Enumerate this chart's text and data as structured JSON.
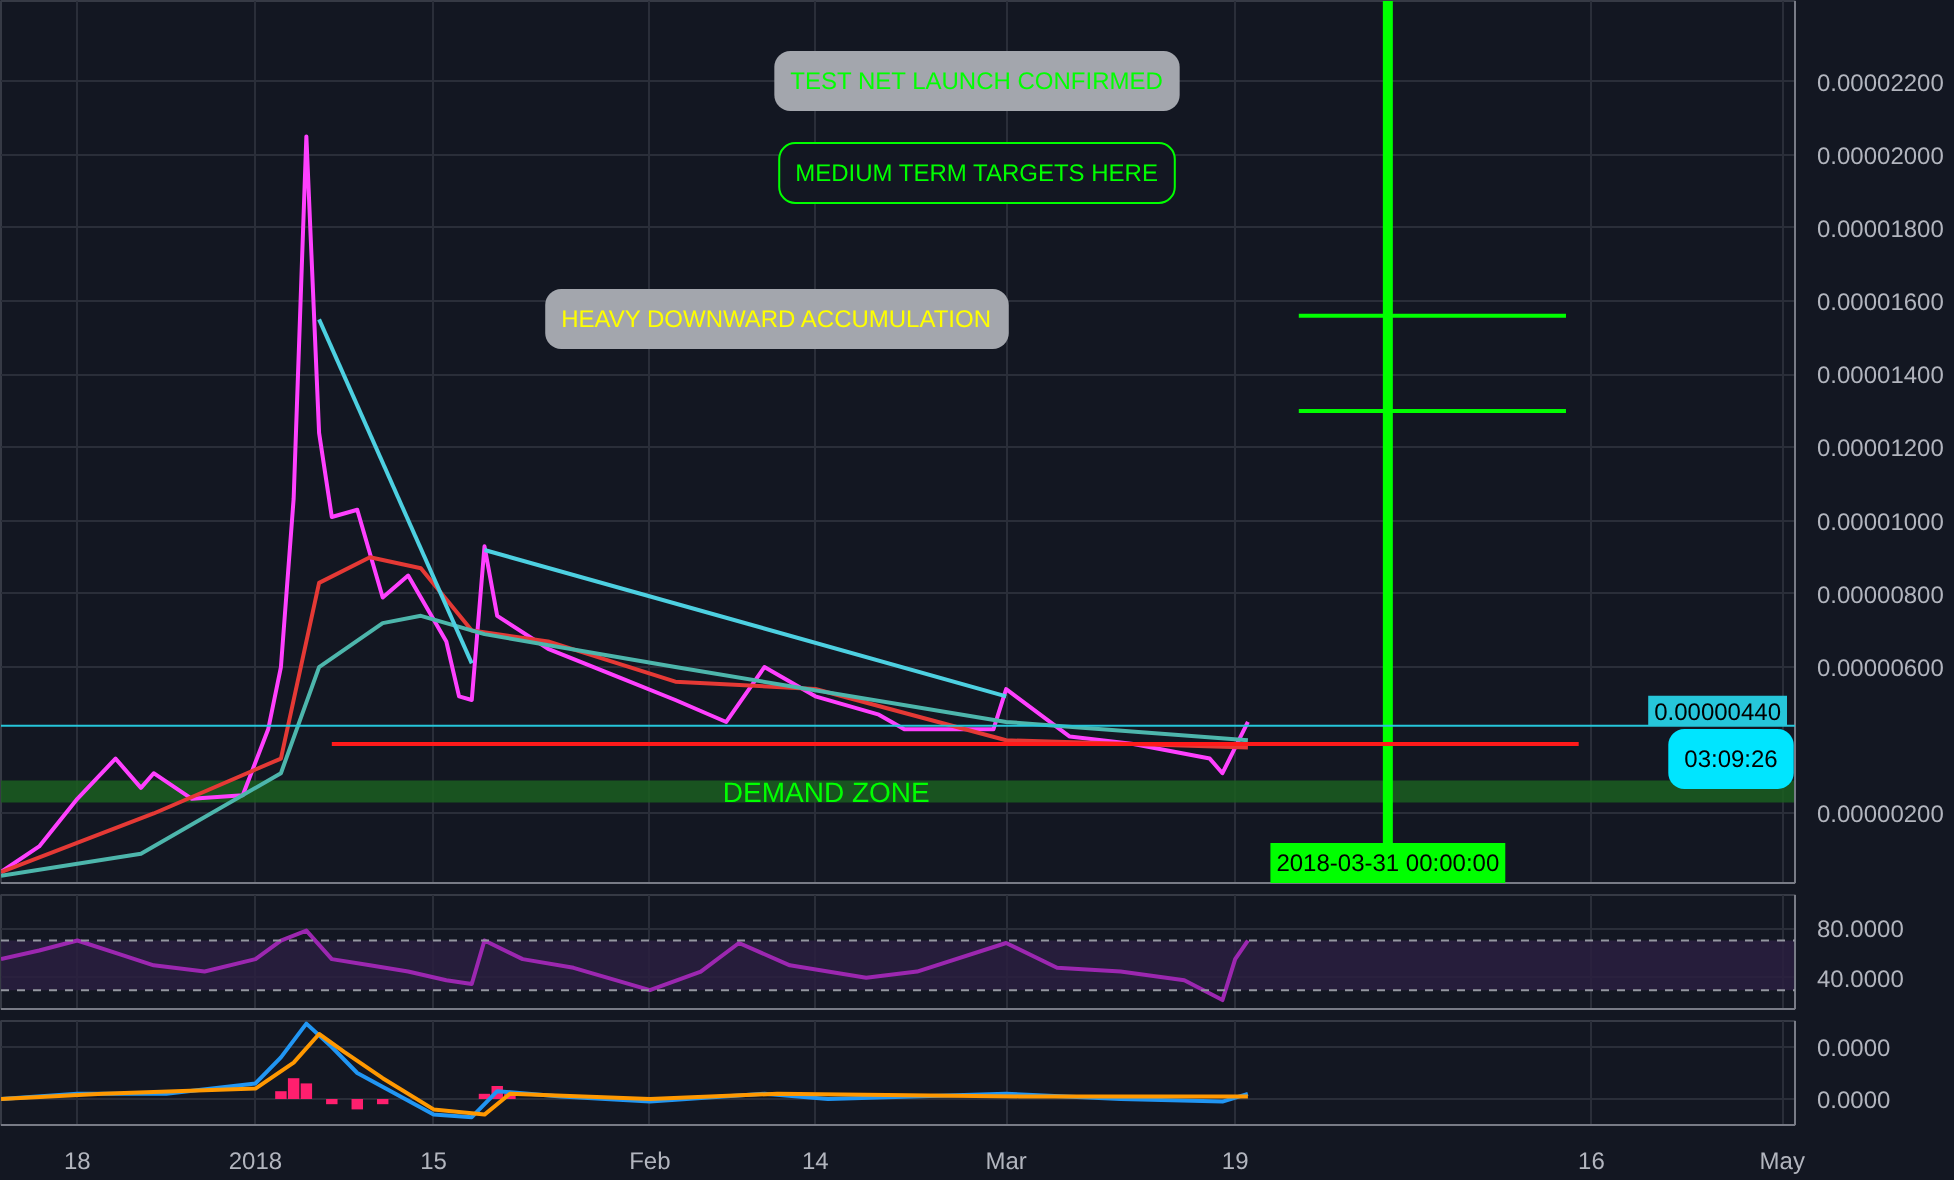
{
  "chart_data": [
    {
      "type": "line",
      "xlim": [
        "2017-12-12",
        "2018-05-02"
      ],
      "ylim": [
        1e-07,
        2.42e-05
      ],
      "tick_labels": "y",
      "grid": true,
      "yticks": [
        {
          "value": 2e-06,
          "label": "0.00000200"
        },
        {
          "value": 6e-06,
          "label": "0.00000600"
        },
        {
          "value": 8e-06,
          "label": "0.00000800"
        },
        {
          "value": 1e-05,
          "label": "0.00001000"
        },
        {
          "value": 1.2e-05,
          "label": "0.00001200"
        },
        {
          "value": 1.4e-05,
          "label": "0.00001400"
        },
        {
          "value": 1.6e-05,
          "label": "0.00001600"
        },
        {
          "value": 1.8e-05,
          "label": "0.00001800"
        },
        {
          "value": 2e-05,
          "label": "0.00002000"
        },
        {
          "value": 2.2e-05,
          "label": "0.00002200"
        }
      ],
      "series": [
        {
          "color": "#ff40ff",
          "x": [
            "2017-12-12",
            "2017-12-15",
            "2017-12-18",
            "2017-12-21",
            "2017-12-23",
            "2017-12-24",
            "2017-12-27",
            "2017-12-31",
            "2018-01-02",
            "2018-01-03",
            "2018-01-04",
            "2018-01-05",
            "2018-01-06",
            "2018-01-07",
            "2018-01-09",
            "2018-01-11",
            "2018-01-13",
            "2018-01-14",
            "2018-01-16",
            "2018-01-17",
            "2018-01-18",
            "2018-01-19",
            "2018-01-20",
            "2018-01-24",
            "2018-01-29",
            "2018-02-03",
            "2018-02-07",
            "2018-02-10",
            "2018-02-14",
            "2018-02-19",
            "2018-02-21",
            "2018-02-28",
            "2018-03-01",
            "2018-03-06",
            "2018-03-11",
            "2018-03-17",
            "2018-03-18",
            "2018-03-20"
          ],
          "values": [
            4e-07,
            1.1e-06,
            2.4e-06,
            3.5e-06,
            2.7e-06,
            3.1e-06,
            2.4e-06,
            2.5e-06,
            4.3e-06,
            6e-06,
            1.06e-05,
            2.05e-05,
            1.24e-05,
            1.01e-05,
            1.03e-05,
            7.9e-06,
            8.5e-06,
            7.9e-06,
            6.7e-06,
            5.2e-06,
            5.1e-06,
            9.3e-06,
            7.4e-06,
            6.5e-06,
            5.8e-06,
            5.1e-06,
            4.5e-06,
            6e-06,
            5.2e-06,
            4.7e-06,
            4.3e-06,
            4.3e-06,
            5.4e-06,
            4.1e-06,
            3.9e-06,
            3.5e-06,
            3.1e-06,
            4.5e-06
          ]
        },
        {
          "color": "#e53935",
          "x": [
            "2017-12-12",
            "2017-12-24",
            "2018-01-03",
            "2018-01-06",
            "2018-01-10",
            "2018-01-14",
            "2018-01-18",
            "2018-01-24",
            "2018-02-03",
            "2018-02-14",
            "2018-03-01",
            "2018-03-20"
          ],
          "values": [
            4e-07,
            2e-06,
            3.5e-06,
            8.3e-06,
            9e-06,
            8.7e-06,
            7e-06,
            6.7e-06,
            5.6e-06,
            5.4e-06,
            4e-06,
            3.8e-06
          ]
        },
        {
          "color": "#4db6ac",
          "x": [
            "2017-12-12",
            "2017-12-23",
            "2018-01-03",
            "2018-01-06",
            "2018-01-11",
            "2018-01-14",
            "2018-01-19",
            "2018-02-03",
            "2018-03-01",
            "2018-03-20"
          ],
          "values": [
            3e-07,
            9e-07,
            3.1e-06,
            6e-06,
            7.2e-06,
            7.4e-06,
            6.9e-06,
            6e-06,
            4.5e-06,
            4e-06
          ]
        },
        {
          "color": "#4dd0e1",
          "x": [
            "2018-01-06",
            "2018-01-18"
          ],
          "values": [
            1.55e-05,
            6.1e-06
          ]
        },
        {
          "color": "#4dd0e1",
          "x": [
            "2018-01-19",
            "2018-03-01"
          ],
          "values": [
            9.2e-06,
            5.2e-06
          ]
        },
        {
          "color": "#ff1a1a",
          "x": [
            "2018-01-07",
            "2018-04-15"
          ],
          "values": [
            3.9e-06,
            3.9e-06
          ]
        },
        {
          "color": "#00ff00",
          "x": [
            "2018-03-24",
            "2018-04-14"
          ],
          "values": [
            1.56e-05,
            1.56e-05
          ]
        },
        {
          "color": "#00ff00",
          "x": [
            "2018-03-24",
            "2018-04-14"
          ],
          "values": [
            1.3e-05,
            1.3e-05
          ]
        }
      ],
      "ref_lines": [
        {
          "axis": "x",
          "value": "2018-03-31",
          "label": "2018-03-31 00:00:00",
          "color": "#00ff00"
        },
        {
          "axis": "y",
          "value": 4.4e-06,
          "label": "0.00000440",
          "color": "#26c6da"
        }
      ],
      "bands": [
        {
          "axis": "y",
          "from": 2.3e-06,
          "to": 2.9e-06,
          "label": "DEMAND ZONE",
          "color": "#1b5e20"
        }
      ],
      "annotations": [
        "TEST NET LAUNCH CONFIRMED",
        "MEDIUM TERM TARGETS HERE",
        "HEAVY DOWNWARD ACCUMULATION",
        "03:09:26"
      ]
    },
    {
      "type": "line",
      "xlim": [
        "2017-12-12",
        "2018-05-02"
      ],
      "ylim": [
        14.8,
        106.7
      ],
      "tick_labels": "y",
      "grid": true,
      "yticks": [
        {
          "value": 40,
          "label": "40.0000"
        },
        {
          "value": 80,
          "label": "80.0000"
        }
      ],
      "series": [
        {
          "color": "#9c27b0",
          "x": [
            "2017-12-12",
            "2017-12-15",
            "2017-12-18",
            "2017-12-21",
            "2017-12-24",
            "2017-12-28",
            "2018-01-01",
            "2018-01-03",
            "2018-01-05",
            "2018-01-07",
            "2018-01-10",
            "2018-01-13",
            "2018-01-16",
            "2018-01-18",
            "2018-01-19",
            "2018-01-22",
            "2018-01-26",
            "2018-02-01",
            "2018-02-05",
            "2018-02-08",
            "2018-02-12",
            "2018-02-18",
            "2018-02-22",
            "2018-03-01",
            "2018-03-05",
            "2018-03-10",
            "2018-03-15",
            "2018-03-18",
            "2018-03-19",
            "2018-03-20"
          ],
          "values": [
            55,
            62,
            70,
            60,
            50,
            45,
            55,
            70,
            78,
            55,
            50,
            45,
            38,
            35,
            70,
            55,
            48,
            30,
            45,
            68,
            50,
            40,
            45,
            68,
            48,
            45,
            38,
            22,
            55,
            70
          ]
        }
      ],
      "ref_lines": [
        {
          "axis": "y",
          "value": 70,
          "color": "#9598a1",
          "line_style": "dashed"
        },
        {
          "axis": "y",
          "value": 30,
          "color": "#9598a1",
          "line_style": "dashed"
        }
      ],
      "bands": [
        {
          "axis": "y",
          "from": 30,
          "to": 70,
          "color": "#2a1e3f"
        }
      ]
    },
    {
      "type": "line",
      "xlim": [
        "2017-12-12",
        "2018-05-02"
      ],
      "ylim": [
        -5e-07,
        1.5e-06
      ],
      "grid": true,
      "xticks": [
        {
          "value": "2017-12-18",
          "label": "18"
        },
        {
          "value": "2018-01-01",
          "label": "2018"
        },
        {
          "value": "2018-01-15",
          "label": "15"
        },
        {
          "value": "2018-02-01",
          "label": "Feb"
        },
        {
          "value": "2018-02-14",
          "label": "14"
        },
        {
          "value": "2018-03-01",
          "label": "Mar"
        },
        {
          "value": "2018-03-19",
          "label": "19"
        },
        {
          "value": "2018-04-16",
          "label": "16"
        },
        {
          "value": "2018-05-01",
          "label": "May"
        }
      ],
      "yticks": [
        {
          "value": 0,
          "label": "0.0000"
        },
        {
          "value": 1e-06,
          "label": "0.0000"
        }
      ],
      "series": [
        {
          "type": "bar",
          "color": "#ff1f6e",
          "x": [
            "2018-01-03",
            "2018-01-04",
            "2018-01-05",
            "2018-01-07",
            "2018-01-09",
            "2018-01-11",
            "2018-01-19",
            "2018-01-20",
            "2018-01-21"
          ],
          "values": [
            1.5e-07,
            4e-07,
            3e-07,
            -1e-07,
            -2e-07,
            -1e-07,
            1e-07,
            2.5e-07,
            1e-07
          ]
        },
        {
          "color": "#2196f3",
          "x": [
            "2017-12-12",
            "2017-12-18",
            "2017-12-25",
            "2018-01-01",
            "2018-01-03",
            "2018-01-05",
            "2018-01-07",
            "2018-01-09",
            "2018-01-12",
            "2018-01-15",
            "2018-01-18",
            "2018-01-20",
            "2018-01-25",
            "2018-02-01",
            "2018-02-10",
            "2018-02-15",
            "2018-03-01",
            "2018-03-10",
            "2018-03-18",
            "2018-03-20"
          ],
          "values": [
            0,
            1e-07,
            1e-07,
            3e-07,
            8e-07,
            1.45e-06,
            1e-06,
            5e-07,
            1e-07,
            -3e-07,
            -3.5e-07,
            1.5e-07,
            5e-08,
            -5e-08,
            1e-07,
            0,
            1e-07,
            0,
            -5e-08,
            1e-07
          ]
        },
        {
          "color": "#ff9800",
          "x": [
            "2017-12-12",
            "2017-12-20",
            "2018-01-01",
            "2018-01-04",
            "2018-01-06",
            "2018-01-08",
            "2018-01-11",
            "2018-01-15",
            "2018-01-19",
            "2018-01-21",
            "2018-02-01",
            "2018-02-11",
            "2018-03-02",
            "2018-03-20"
          ],
          "values": [
            0,
            1e-07,
            2e-07,
            7e-07,
            1.25e-06,
            9e-07,
            4e-07,
            -2e-07,
            -3e-07,
            1e-07,
            0,
            1e-07,
            5e-08,
            5e-08
          ]
        }
      ]
    }
  ]
}
